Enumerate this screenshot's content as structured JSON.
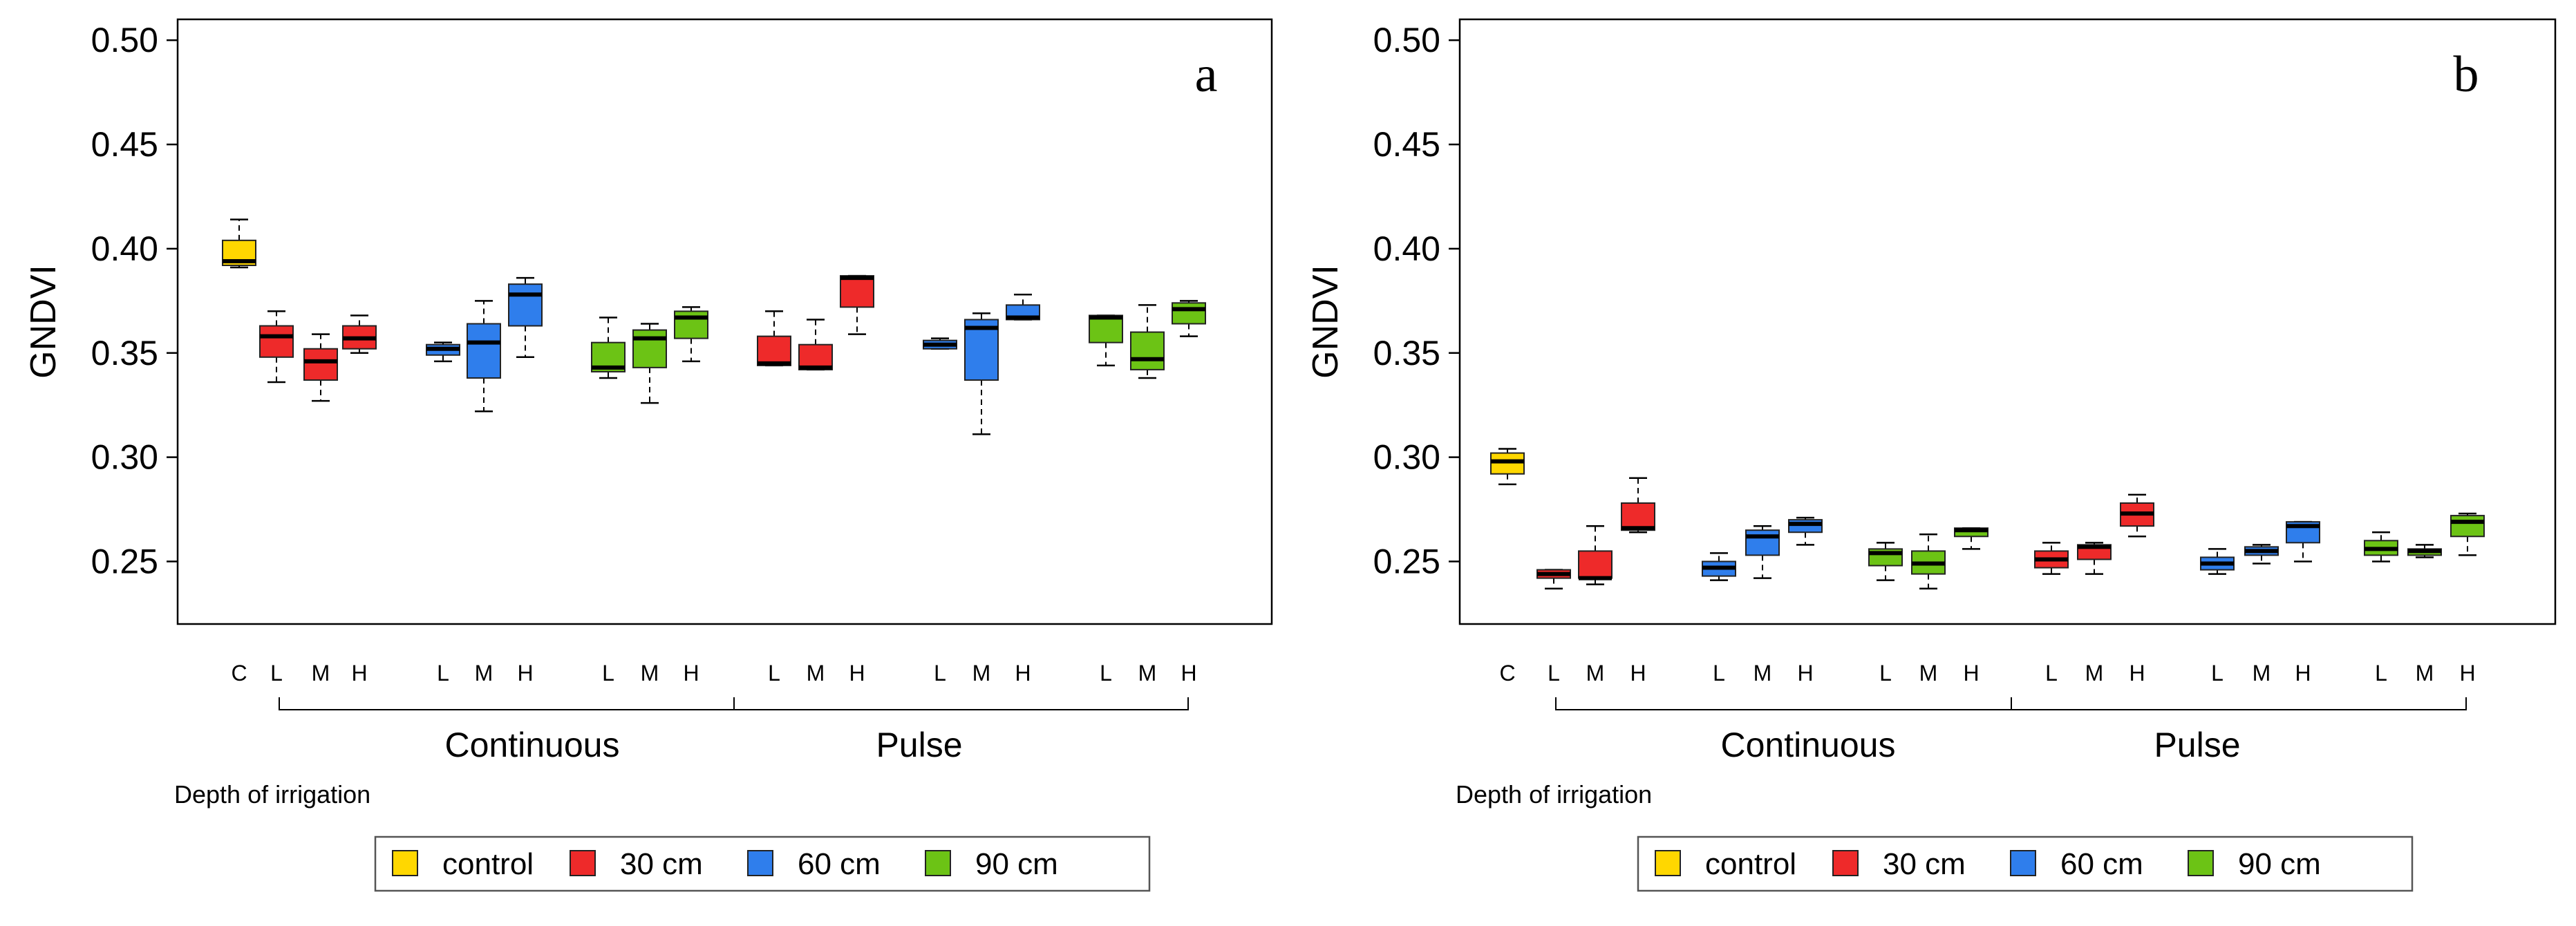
{
  "chart_data": [
    {
      "type": "boxplot",
      "panel_label": "a",
      "ylabel": "GNDVI",
      "ylim": [
        0.22,
        0.51
      ],
      "yticks": [
        "0.25",
        "0.30",
        "0.35",
        "0.40",
        "0.45",
        "0.50"
      ],
      "x_title": "Depth of irrigation",
      "group_labels": [
        "Continuous",
        "Pulse"
      ],
      "boxes": [
        {
          "label": "C",
          "series": "control",
          "stats": {
            "min": 0.391,
            "q1": 0.392,
            "median": 0.394,
            "q3": 0.404,
            "max": 0.414
          }
        },
        {
          "label": "L",
          "series": "30 cm",
          "stats": {
            "min": 0.336,
            "q1": 0.348,
            "median": 0.358,
            "q3": 0.363,
            "max": 0.37
          }
        },
        {
          "label": "M",
          "series": "30 cm",
          "stats": {
            "min": 0.327,
            "q1": 0.337,
            "median": 0.346,
            "q3": 0.352,
            "max": 0.359
          }
        },
        {
          "label": "H",
          "series": "30 cm",
          "stats": {
            "min": 0.35,
            "q1": 0.352,
            "median": 0.357,
            "q3": 0.363,
            "max": 0.368
          }
        },
        {
          "label": "L",
          "series": "60 cm",
          "stats": {
            "min": 0.346,
            "q1": 0.349,
            "median": 0.352,
            "q3": 0.354,
            "max": 0.355
          }
        },
        {
          "label": "M",
          "series": "60 cm",
          "stats": {
            "min": 0.322,
            "q1": 0.338,
            "median": 0.355,
            "q3": 0.364,
            "max": 0.375
          }
        },
        {
          "label": "H",
          "series": "60 cm",
          "stats": {
            "min": 0.348,
            "q1": 0.363,
            "median": 0.378,
            "q3": 0.383,
            "max": 0.386
          }
        },
        {
          "label": "L",
          "series": "90 cm",
          "stats": {
            "min": 0.338,
            "q1": 0.341,
            "median": 0.343,
            "q3": 0.355,
            "max": 0.367
          }
        },
        {
          "label": "M",
          "series": "90 cm",
          "stats": {
            "min": 0.326,
            "q1": 0.343,
            "median": 0.357,
            "q3": 0.361,
            "max": 0.364
          }
        },
        {
          "label": "H",
          "series": "90 cm",
          "stats": {
            "min": 0.346,
            "q1": 0.357,
            "median": 0.367,
            "q3": 0.37,
            "max": 0.372
          }
        },
        {
          "label": "L",
          "series": "30 cm",
          "stats": {
            "min": 0.344,
            "q1": 0.344,
            "median": 0.345,
            "q3": 0.358,
            "max": 0.37
          }
        },
        {
          "label": "M",
          "series": "30 cm",
          "stats": {
            "min": 0.342,
            "q1": 0.342,
            "median": 0.343,
            "q3": 0.354,
            "max": 0.366
          }
        },
        {
          "label": "H",
          "series": "30 cm",
          "stats": {
            "min": 0.359,
            "q1": 0.372,
            "median": 0.386,
            "q3": 0.387,
            "max": 0.387
          }
        },
        {
          "label": "L",
          "series": "60 cm",
          "stats": {
            "min": 0.352,
            "q1": 0.352,
            "median": 0.354,
            "q3": 0.356,
            "max": 0.357
          }
        },
        {
          "label": "M",
          "series": "60 cm",
          "stats": {
            "min": 0.311,
            "q1": 0.337,
            "median": 0.362,
            "q3": 0.366,
            "max": 0.369
          }
        },
        {
          "label": "H",
          "series": "60 cm",
          "stats": {
            "min": 0.366,
            "q1": 0.366,
            "median": 0.367,
            "q3": 0.373,
            "max": 0.378
          }
        },
        {
          "label": "L",
          "series": "90 cm",
          "stats": {
            "min": 0.344,
            "q1": 0.355,
            "median": 0.367,
            "q3": 0.368,
            "max": 0.368
          }
        },
        {
          "label": "M",
          "series": "90 cm",
          "stats": {
            "min": 0.338,
            "q1": 0.342,
            "median": 0.347,
            "q3": 0.36,
            "max": 0.373
          }
        },
        {
          "label": "H",
          "series": "90 cm",
          "stats": {
            "min": 0.358,
            "q1": 0.364,
            "median": 0.371,
            "q3": 0.374,
            "max": 0.375
          }
        }
      ]
    },
    {
      "type": "boxplot",
      "panel_label": "b",
      "ylabel": "GNDVI",
      "ylim": [
        0.22,
        0.51
      ],
      "yticks": [
        "0.25",
        "0.30",
        "0.35",
        "0.40",
        "0.45",
        "0.50"
      ],
      "x_title": "Depth of irrigation",
      "group_labels": [
        "Continuous",
        "Pulse"
      ],
      "boxes": [
        {
          "label": "C",
          "series": "control",
          "stats": {
            "min": 0.287,
            "q1": 0.292,
            "median": 0.298,
            "q3": 0.302,
            "max": 0.304
          }
        },
        {
          "label": "L",
          "series": "30 cm",
          "stats": {
            "min": 0.237,
            "q1": 0.242,
            "median": 0.244,
            "q3": 0.246,
            "max": 0.246
          }
        },
        {
          "label": "M",
          "series": "30 cm",
          "stats": {
            "min": 0.239,
            "q1": 0.242,
            "median": 0.242,
            "q3": 0.255,
            "max": 0.267
          }
        },
        {
          "label": "H",
          "series": "30 cm",
          "stats": {
            "min": 0.264,
            "q1": 0.265,
            "median": 0.266,
            "q3": 0.278,
            "max": 0.29
          }
        },
        {
          "label": "L",
          "series": "60 cm",
          "stats": {
            "min": 0.241,
            "q1": 0.243,
            "median": 0.247,
            "q3": 0.25,
            "max": 0.254
          }
        },
        {
          "label": "M",
          "series": "60 cm",
          "stats": {
            "min": 0.242,
            "q1": 0.253,
            "median": 0.262,
            "q3": 0.265,
            "max": 0.267
          }
        },
        {
          "label": "H",
          "series": "60 cm",
          "stats": {
            "min": 0.258,
            "q1": 0.264,
            "median": 0.268,
            "q3": 0.27,
            "max": 0.271
          }
        },
        {
          "label": "L",
          "series": "90 cm",
          "stats": {
            "min": 0.241,
            "q1": 0.248,
            "median": 0.254,
            "q3": 0.256,
            "max": 0.259
          }
        },
        {
          "label": "M",
          "series": "90 cm",
          "stats": {
            "min": 0.237,
            "q1": 0.244,
            "median": 0.249,
            "q3": 0.255,
            "max": 0.263
          }
        },
        {
          "label": "H",
          "series": "90 cm",
          "stats": {
            "min": 0.256,
            "q1": 0.262,
            "median": 0.265,
            "q3": 0.266,
            "max": 0.266
          }
        },
        {
          "label": "L",
          "series": "30 cm",
          "stats": {
            "min": 0.244,
            "q1": 0.247,
            "median": 0.251,
            "q3": 0.255,
            "max": 0.259
          }
        },
        {
          "label": "M",
          "series": "30 cm",
          "stats": {
            "min": 0.244,
            "q1": 0.251,
            "median": 0.257,
            "q3": 0.258,
            "max": 0.259
          }
        },
        {
          "label": "H",
          "series": "30 cm",
          "stats": {
            "min": 0.262,
            "q1": 0.267,
            "median": 0.273,
            "q3": 0.278,
            "max": 0.282
          }
        },
        {
          "label": "L",
          "series": "60 cm",
          "stats": {
            "min": 0.244,
            "q1": 0.246,
            "median": 0.249,
            "q3": 0.252,
            "max": 0.256
          }
        },
        {
          "label": "M",
          "series": "60 cm",
          "stats": {
            "min": 0.249,
            "q1": 0.253,
            "median": 0.255,
            "q3": 0.257,
            "max": 0.258
          }
        },
        {
          "label": "H",
          "series": "60 cm",
          "stats": {
            "min": 0.25,
            "q1": 0.259,
            "median": 0.267,
            "q3": 0.269,
            "max": 0.269
          }
        },
        {
          "label": "L",
          "series": "90 cm",
          "stats": {
            "min": 0.25,
            "q1": 0.253,
            "median": 0.256,
            "q3": 0.26,
            "max": 0.264
          }
        },
        {
          "label": "M",
          "series": "90 cm",
          "stats": {
            "min": 0.252,
            "q1": 0.253,
            "median": 0.255,
            "q3": 0.256,
            "max": 0.258
          }
        },
        {
          "label": "H",
          "series": "90 cm",
          "stats": {
            "min": 0.253,
            "q1": 0.262,
            "median": 0.269,
            "q3": 0.272,
            "max": 0.273
          }
        }
      ]
    }
  ],
  "legend": [
    {
      "name": "control",
      "color": "#FFD700"
    },
    {
      "name": "30 cm",
      "color": "#EE2A2A"
    },
    {
      "name": "60 cm",
      "color": "#2F7EEC"
    },
    {
      "name": "90 cm",
      "color": "#6CC315"
    }
  ]
}
